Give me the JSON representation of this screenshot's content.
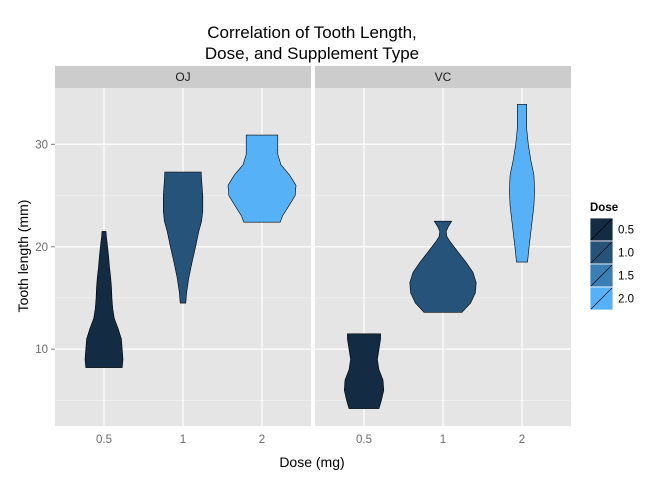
{
  "chart_data": {
    "type": "violin",
    "title_lines": [
      "Correlation of Tooth Length,",
      "Dose, and Supplement Type"
    ],
    "xlabel": "Dose (mg)",
    "ylabel": "Tooth length (mm)",
    "x_categories": [
      "0.5",
      "1",
      "2"
    ],
    "ylim": [
      2.5,
      35.5
    ],
    "y_ticks": [
      10,
      20,
      30
    ],
    "grid": true,
    "legend_position": "right",
    "legend": {
      "title": "Dose",
      "entries": [
        {
          "label": "0.5",
          "color": "#132B43"
        },
        {
          "label": "1.0",
          "color": "#26537A"
        },
        {
          "label": "1.5",
          "color": "#3A7EB4"
        },
        {
          "label": "2.0",
          "color": "#56B1F7"
        }
      ]
    },
    "panels": [
      {
        "label": "OJ",
        "violins": [
          {
            "dose": "0.5",
            "fill": "#132B43",
            "min": 8.2,
            "max": 21.5,
            "profile": [
              [
                8.2,
                0.46
              ],
              [
                9.0,
                0.48
              ],
              [
                10.0,
                0.46
              ],
              [
                11.0,
                0.44
              ],
              [
                12.0,
                0.36
              ],
              [
                13.0,
                0.26
              ],
              [
                14.0,
                0.22
              ],
              [
                15.0,
                0.2
              ],
              [
                16.0,
                0.19
              ],
              [
                17.0,
                0.17
              ],
              [
                18.0,
                0.14
              ],
              [
                19.0,
                0.12
              ],
              [
                20.0,
                0.09
              ],
              [
                21.0,
                0.06
              ],
              [
                21.5,
                0.05
              ]
            ]
          },
          {
            "dose": "1",
            "fill": "#26537A",
            "min": 14.5,
            "max": 27.3,
            "profile": [
              [
                14.5,
                0.07
              ],
              [
                15.5,
                0.09
              ],
              [
                17.0,
                0.15
              ],
              [
                18.5,
                0.23
              ],
              [
                20.0,
                0.32
              ],
              [
                21.5,
                0.4
              ],
              [
                22.5,
                0.47
              ],
              [
                23.5,
                0.5
              ],
              [
                25.0,
                0.5
              ],
              [
                26.5,
                0.47
              ],
              [
                27.3,
                0.46
              ]
            ]
          },
          {
            "dose": "2",
            "fill": "#56B1F7",
            "min": 22.4,
            "max": 30.9,
            "profile": [
              [
                22.4,
                0.46
              ],
              [
                23.0,
                0.52
              ],
              [
                24.0,
                0.68
              ],
              [
                25.0,
                0.84
              ],
              [
                26.0,
                0.86
              ],
              [
                27.0,
                0.7
              ],
              [
                28.0,
                0.48
              ],
              [
                29.0,
                0.4
              ],
              [
                30.0,
                0.4
              ],
              [
                30.9,
                0.4
              ]
            ]
          }
        ]
      },
      {
        "label": "VC",
        "violins": [
          {
            "dose": "0.5",
            "fill": "#132B43",
            "min": 4.2,
            "max": 11.5,
            "profile": [
              [
                4.2,
                0.38
              ],
              [
                5.0,
                0.44
              ],
              [
                6.0,
                0.5
              ],
              [
                7.0,
                0.48
              ],
              [
                8.0,
                0.38
              ],
              [
                9.0,
                0.34
              ],
              [
                10.0,
                0.38
              ],
              [
                11.0,
                0.42
              ],
              [
                11.5,
                0.42
              ]
            ]
          },
          {
            "dose": "1",
            "fill": "#26537A",
            "min": 13.6,
            "max": 22.5,
            "profile": [
              [
                13.6,
                0.48
              ],
              [
                14.5,
                0.7
              ],
              [
                15.5,
                0.82
              ],
              [
                16.5,
                0.84
              ],
              [
                17.5,
                0.76
              ],
              [
                18.5,
                0.58
              ],
              [
                19.5,
                0.38
              ],
              [
                20.5,
                0.18
              ],
              [
                21.0,
                0.1
              ],
              [
                21.5,
                0.08
              ],
              [
                22.0,
                0.14
              ],
              [
                22.5,
                0.22
              ]
            ]
          },
          {
            "dose": "2",
            "fill": "#56B1F7",
            "min": 18.5,
            "max": 33.9,
            "profile": [
              [
                18.5,
                0.14
              ],
              [
                20.0,
                0.18
              ],
              [
                22.0,
                0.24
              ],
              [
                24.0,
                0.3
              ],
              [
                25.5,
                0.32
              ],
              [
                27.0,
                0.3
              ],
              [
                28.5,
                0.22
              ],
              [
                30.0,
                0.16
              ],
              [
                31.5,
                0.12
              ],
              [
                33.0,
                0.12
              ],
              [
                33.9,
                0.12
              ]
            ]
          }
        ]
      }
    ]
  }
}
